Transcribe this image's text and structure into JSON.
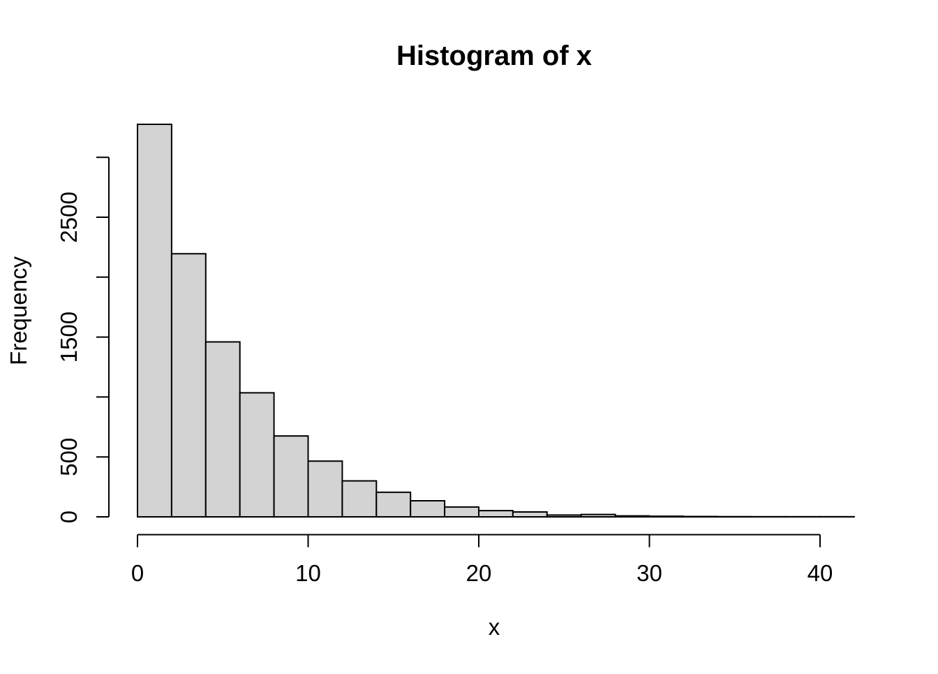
{
  "chart_data": {
    "type": "bar",
    "subtype": "histogram",
    "title": "Histogram of x",
    "xlabel": "x",
    "ylabel": "Frequency",
    "breaks": [
      0,
      2,
      4,
      6,
      8,
      10,
      12,
      14,
      16,
      18,
      20,
      22,
      24,
      26,
      28,
      30,
      32,
      34,
      36,
      38,
      40,
      42
    ],
    "counts": [
      3275,
      2195,
      1460,
      1035,
      675,
      465,
      300,
      205,
      134,
      82,
      52,
      41,
      15,
      20,
      8,
      5,
      3,
      2,
      1,
      1,
      1
    ],
    "x_ticks": [
      0,
      10,
      20,
      30,
      40
    ],
    "x_tick_labels": [
      "0",
      "10",
      "20",
      "30",
      "40"
    ],
    "y_ticks": [
      0,
      500,
      1000,
      1500,
      2000,
      2500,
      3000
    ],
    "y_labeled_ticks": [
      0,
      500,
      1500,
      2500
    ],
    "y_tick_labels": [
      "0",
      "500",
      "1500",
      "2500"
    ],
    "xlim": [
      0,
      42
    ],
    "ylim": [
      0,
      3300
    ],
    "grid": false,
    "legend": "none",
    "bar_fill": "#d3d3d3",
    "bar_stroke": "#000000",
    "axis_color": "#000000",
    "background": "#ffffff"
  }
}
